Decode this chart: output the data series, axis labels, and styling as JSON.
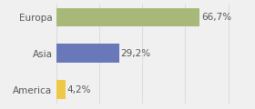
{
  "categories": [
    "America",
    "Asia",
    "Europa"
  ],
  "values": [
    4.2,
    29.2,
    66.7
  ],
  "labels": [
    "4,2%",
    "29,2%",
    "66,7%"
  ],
  "bar_colors": [
    "#f0c848",
    "#6878b8",
    "#a8b878"
  ],
  "background_color": "#f0f0f0",
  "xlim": [
    0,
    90
  ],
  "bar_height": 0.52,
  "label_fontsize": 7.5,
  "tick_fontsize": 7.5,
  "grid_color": "#d8d8d8",
  "text_color": "#555555"
}
